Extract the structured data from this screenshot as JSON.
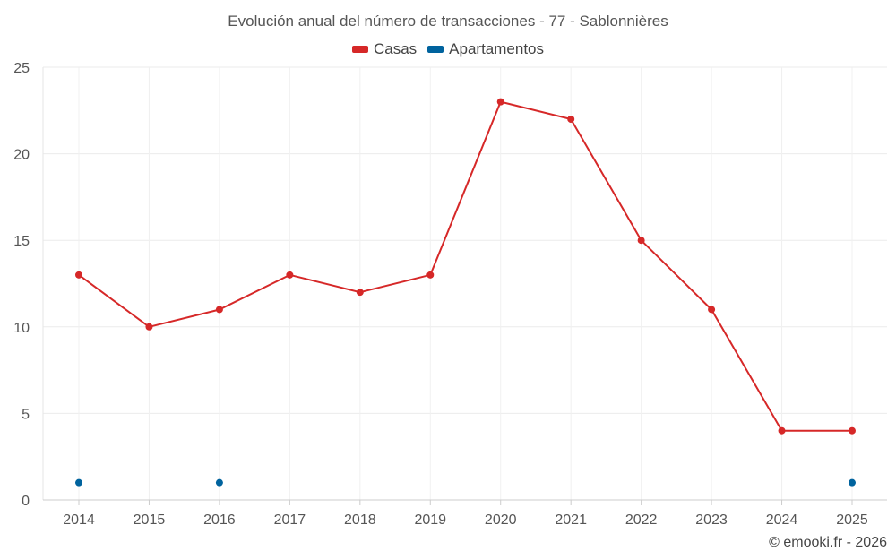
{
  "chart_data": {
    "type": "line",
    "title": "Evolución anual del número de transacciones - 77 - Sablonnières",
    "categories": [
      "2014",
      "2015",
      "2016",
      "2017",
      "2018",
      "2019",
      "2020",
      "2021",
      "2022",
      "2023",
      "2024",
      "2025"
    ],
    "series": [
      {
        "name": "Casas",
        "color": "#d62828",
        "values": [
          13,
          10,
          11,
          13,
          12,
          13,
          23,
          22,
          15,
          11,
          4,
          4
        ]
      },
      {
        "name": "Apartamentos",
        "color": "#00639e",
        "values": [
          1,
          null,
          1,
          null,
          null,
          null,
          null,
          null,
          null,
          null,
          null,
          1
        ]
      }
    ],
    "ylim": [
      0,
      25
    ],
    "yticks": [
      "0",
      "5",
      "10",
      "15",
      "20",
      "25"
    ],
    "grid": true,
    "legend_position": "top-center"
  },
  "credit": "© emooki.fr - 2026"
}
